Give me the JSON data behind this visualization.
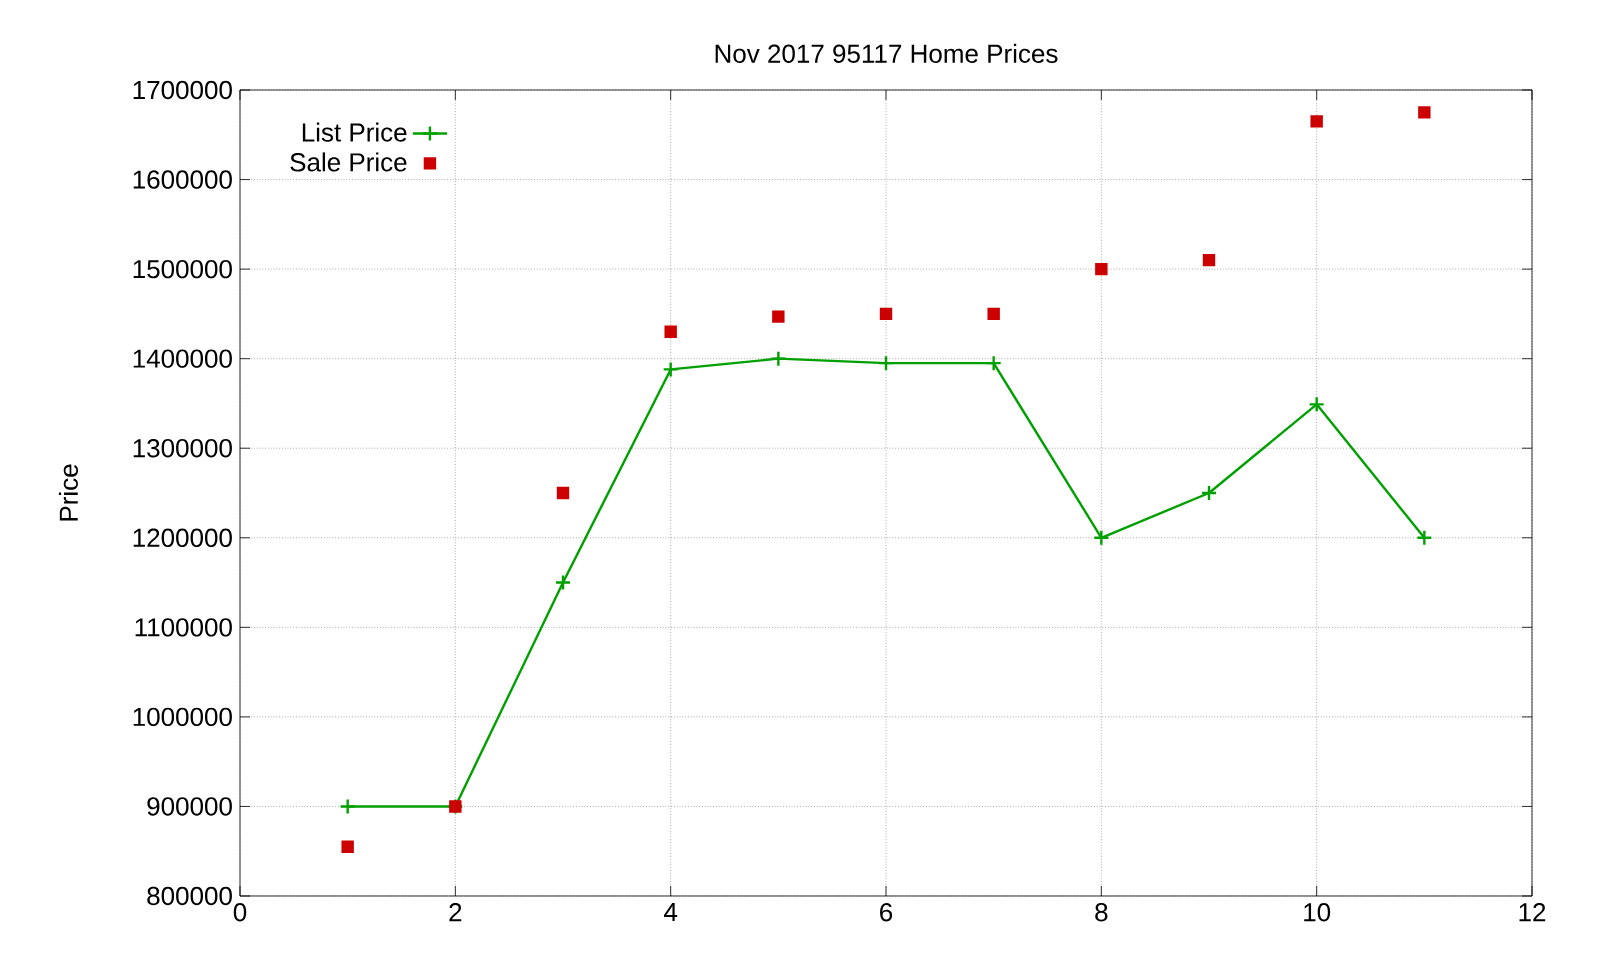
{
  "chart_data": {
    "type": "line",
    "title": "Nov 2017 95117 Home Prices",
    "ylabel": "Price",
    "x": [
      1,
      2,
      3,
      4,
      5,
      6,
      7,
      8,
      9,
      10,
      11
    ],
    "series": [
      {
        "name": "List Price",
        "color": "#00a000",
        "marker": "cross",
        "values": [
          900000,
          900000,
          1150000,
          1388000,
          1400000,
          1395000,
          1395000,
          1200000,
          1250000,
          1349000,
          1200000
        ]
      },
      {
        "name": "Sale Price",
        "type": "scatter",
        "color": "#cc0000",
        "marker": "square",
        "values": [
          855000,
          900000,
          1250000,
          1430000,
          1447000,
          1450000,
          1450000,
          1500000,
          1510000,
          1665000,
          1675000
        ]
      }
    ],
    "xlim": [
      0,
      12
    ],
    "xticks": [
      0,
      2,
      4,
      6,
      8,
      10,
      12
    ],
    "ylim": [
      800000,
      1700000
    ],
    "yticks": [
      800000,
      900000,
      1000000,
      1100000,
      1200000,
      1300000,
      1400000,
      1500000,
      1600000,
      1700000
    ],
    "grid": true,
    "legend": "top left"
  }
}
